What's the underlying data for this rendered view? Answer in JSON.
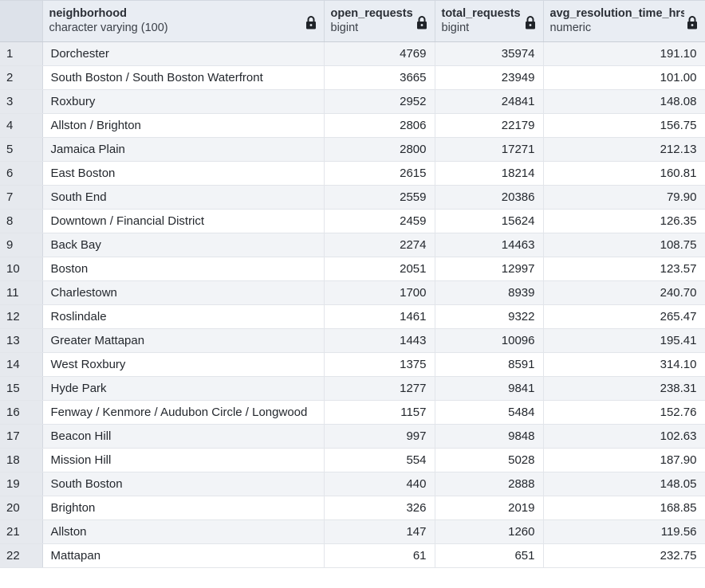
{
  "columns": [
    {
      "name": "neighborhood",
      "type": "character varying (100)",
      "icon": "lock-icon"
    },
    {
      "name": "open_requests",
      "type": "bigint",
      "icon": "lock-icon"
    },
    {
      "name": "total_requests",
      "type": "bigint",
      "icon": "lock-icon"
    },
    {
      "name": "avg_resolution_time_hrs",
      "type": "numeric",
      "icon": "lock-icon"
    }
  ],
  "rows": [
    {
      "n": "1",
      "neighborhood": "Dorchester",
      "open": "4769",
      "total": "35974",
      "avg": "191.10"
    },
    {
      "n": "2",
      "neighborhood": "South Boston / South Boston Waterfront",
      "open": "3665",
      "total": "23949",
      "avg": "101.00"
    },
    {
      "n": "3",
      "neighborhood": "Roxbury",
      "open": "2952",
      "total": "24841",
      "avg": "148.08"
    },
    {
      "n": "4",
      "neighborhood": "Allston / Brighton",
      "open": "2806",
      "total": "22179",
      "avg": "156.75"
    },
    {
      "n": "5",
      "neighborhood": "Jamaica Plain",
      "open": "2800",
      "total": "17271",
      "avg": "212.13"
    },
    {
      "n": "6",
      "neighborhood": "East Boston",
      "open": "2615",
      "total": "18214",
      "avg": "160.81"
    },
    {
      "n": "7",
      "neighborhood": "South End",
      "open": "2559",
      "total": "20386",
      "avg": "79.90"
    },
    {
      "n": "8",
      "neighborhood": "Downtown / Financial District",
      "open": "2459",
      "total": "15624",
      "avg": "126.35"
    },
    {
      "n": "9",
      "neighborhood": "Back Bay",
      "open": "2274",
      "total": "14463",
      "avg": "108.75"
    },
    {
      "n": "10",
      "neighborhood": "Boston",
      "open": "2051",
      "total": "12997",
      "avg": "123.57"
    },
    {
      "n": "11",
      "neighborhood": "Charlestown",
      "open": "1700",
      "total": "8939",
      "avg": "240.70"
    },
    {
      "n": "12",
      "neighborhood": "Roslindale",
      "open": "1461",
      "total": "9322",
      "avg": "265.47"
    },
    {
      "n": "13",
      "neighborhood": "Greater Mattapan",
      "open": "1443",
      "total": "10096",
      "avg": "195.41"
    },
    {
      "n": "14",
      "neighborhood": "West Roxbury",
      "open": "1375",
      "total": "8591",
      "avg": "314.10"
    },
    {
      "n": "15",
      "neighborhood": "Hyde Park",
      "open": "1277",
      "total": "9841",
      "avg": "238.31"
    },
    {
      "n": "16",
      "neighborhood": "Fenway / Kenmore / Audubon Circle / Longwood",
      "open": "1157",
      "total": "5484",
      "avg": "152.76"
    },
    {
      "n": "17",
      "neighborhood": "Beacon Hill",
      "open": "997",
      "total": "9848",
      "avg": "102.63"
    },
    {
      "n": "18",
      "neighborhood": "Mission Hill",
      "open": "554",
      "total": "5028",
      "avg": "187.90"
    },
    {
      "n": "19",
      "neighborhood": "South Boston",
      "open": "440",
      "total": "2888",
      "avg": "148.05"
    },
    {
      "n": "20",
      "neighborhood": "Brighton",
      "open": "326",
      "total": "2019",
      "avg": "168.85"
    },
    {
      "n": "21",
      "neighborhood": "Allston",
      "open": "147",
      "total": "1260",
      "avg": "119.56"
    },
    {
      "n": "22",
      "neighborhood": "Mattapan",
      "open": "61",
      "total": "651",
      "avg": "232.75"
    }
  ]
}
